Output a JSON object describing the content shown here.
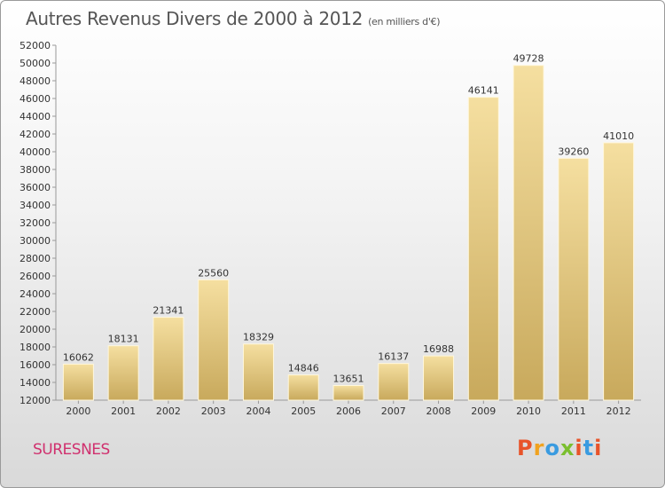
{
  "header": {
    "title": "Autres Revenus Divers de 2000 à 2012",
    "unit": "(en milliers d'€)"
  },
  "footer": {
    "city": "SURESNES",
    "logo": "Proxiti",
    "logo_colors": [
      "#e8542a",
      "#f0a21f",
      "#3a9be0",
      "#7bbf2f",
      "#e8542a",
      "#3a9be0",
      "#e8542a"
    ]
  },
  "colors": {
    "bar_light": "#f5dfa0",
    "bar_dark": "#c8a95c",
    "axis": "#999999",
    "grid": "#cccccc",
    "text": "#333333"
  },
  "chart_data": {
    "type": "bar",
    "title": "Autres Revenus Divers de 2000 à 2012",
    "xlabel": "",
    "ylabel": "",
    "categories": [
      "2000",
      "2001",
      "2002",
      "2003",
      "2004",
      "2005",
      "2006",
      "2007",
      "2008",
      "2009",
      "2010",
      "2011",
      "2012"
    ],
    "values": [
      16062,
      18131,
      21341,
      25560,
      18329,
      14846,
      13651,
      16137,
      16988,
      46141,
      49728,
      39260,
      41010
    ],
    "ylim": [
      12000,
      52000
    ],
    "ytick_step": 2000,
    "grid": false,
    "data_labels": true
  }
}
